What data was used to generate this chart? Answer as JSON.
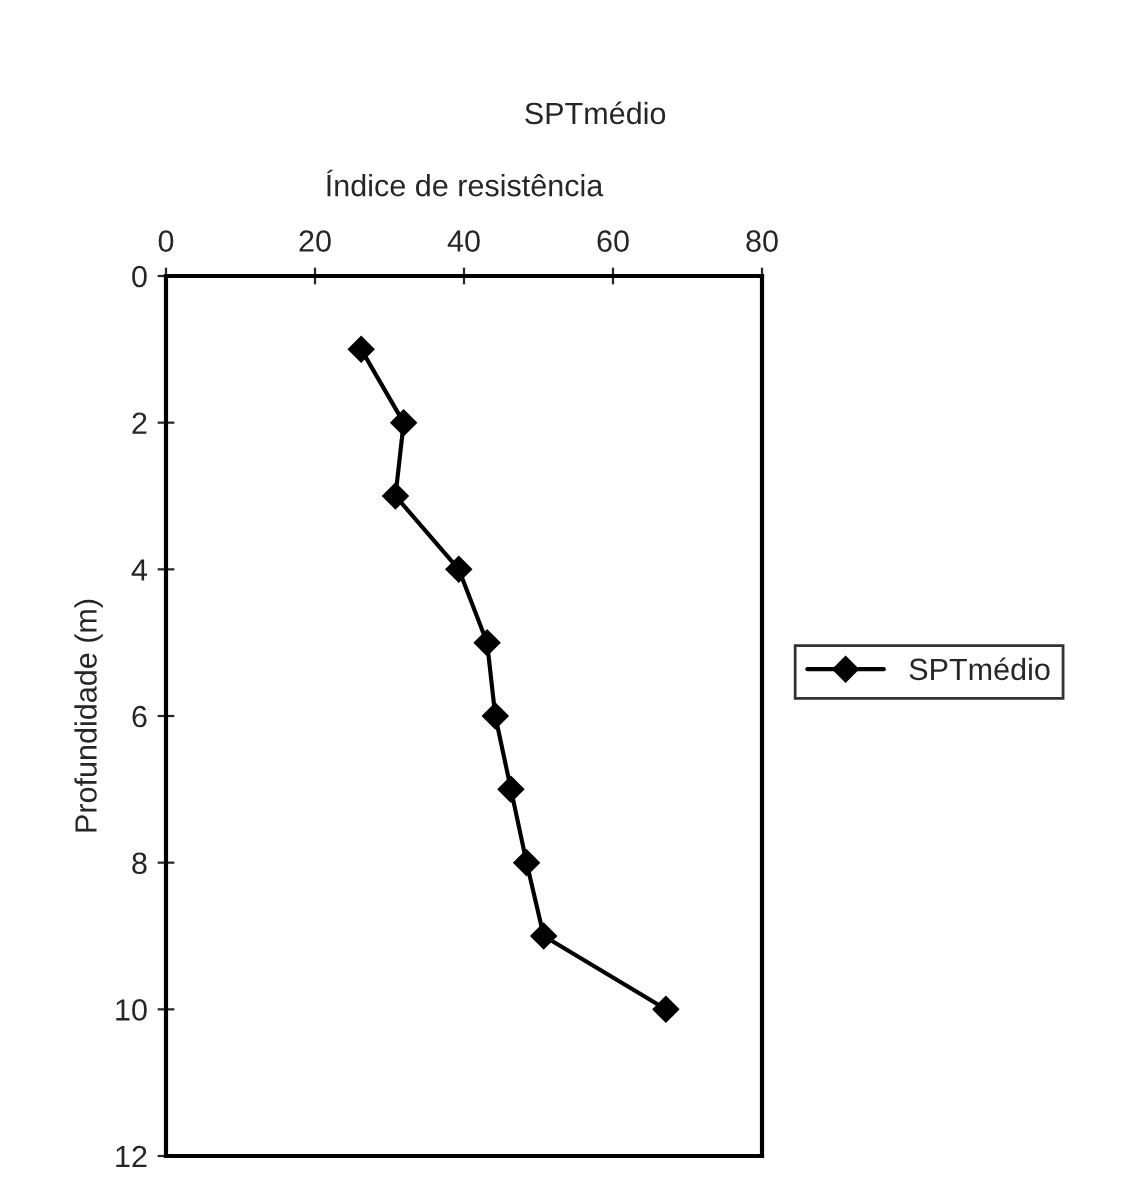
{
  "chart_data": {
    "type": "line",
    "title": "SPTmédio",
    "xlabel": "Índice de resistência",
    "ylabel": "Profundidade (m)",
    "xlim": [
      0,
      80
    ],
    "xticks": [
      0,
      20,
      40,
      60,
      80
    ],
    "ylim": [
      12,
      0
    ],
    "yticks": [
      0,
      2,
      4,
      6,
      8,
      10,
      12
    ],
    "grid": false,
    "legend": "right",
    "marker": "diamond",
    "line_style": "solid",
    "series": [
      {
        "name": "SPTmédio",
        "color": "#000000",
        "x": [
          26.2,
          31.9,
          30.8,
          39.3,
          43.1,
          44.2,
          46.3,
          48.4,
          50.7,
          67.1
        ],
        "values": [
          1,
          2,
          3,
          4,
          5,
          6,
          7,
          8,
          9,
          10
        ]
      }
    ]
  }
}
